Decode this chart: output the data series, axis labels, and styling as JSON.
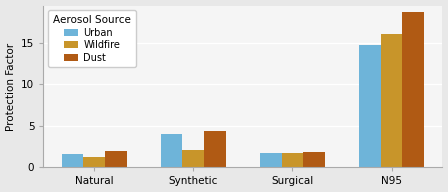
{
  "categories": [
    "Natural",
    "Synthetic",
    "Surgical",
    "N95"
  ],
  "series": {
    "Urban": [
      1.6,
      4.0,
      1.75,
      14.7
    ],
    "Wildfire": [
      1.2,
      2.1,
      1.75,
      16.1
    ],
    "Dust": [
      2.0,
      4.4,
      1.9,
      18.7
    ]
  },
  "colors": {
    "Urban": "#6eb4d9",
    "Wildfire": "#c8952a",
    "Dust": "#b05a14"
  },
  "legend_title": "Aerosol Source",
  "ylabel": "Protection Factor",
  "ylim": [
    0,
    19.5
  ],
  "yticks": [
    0,
    5,
    10,
    15
  ],
  "bar_width": 0.22,
  "figure_bg": "#e8e8e8",
  "axes_bg": "#f5f5f5"
}
